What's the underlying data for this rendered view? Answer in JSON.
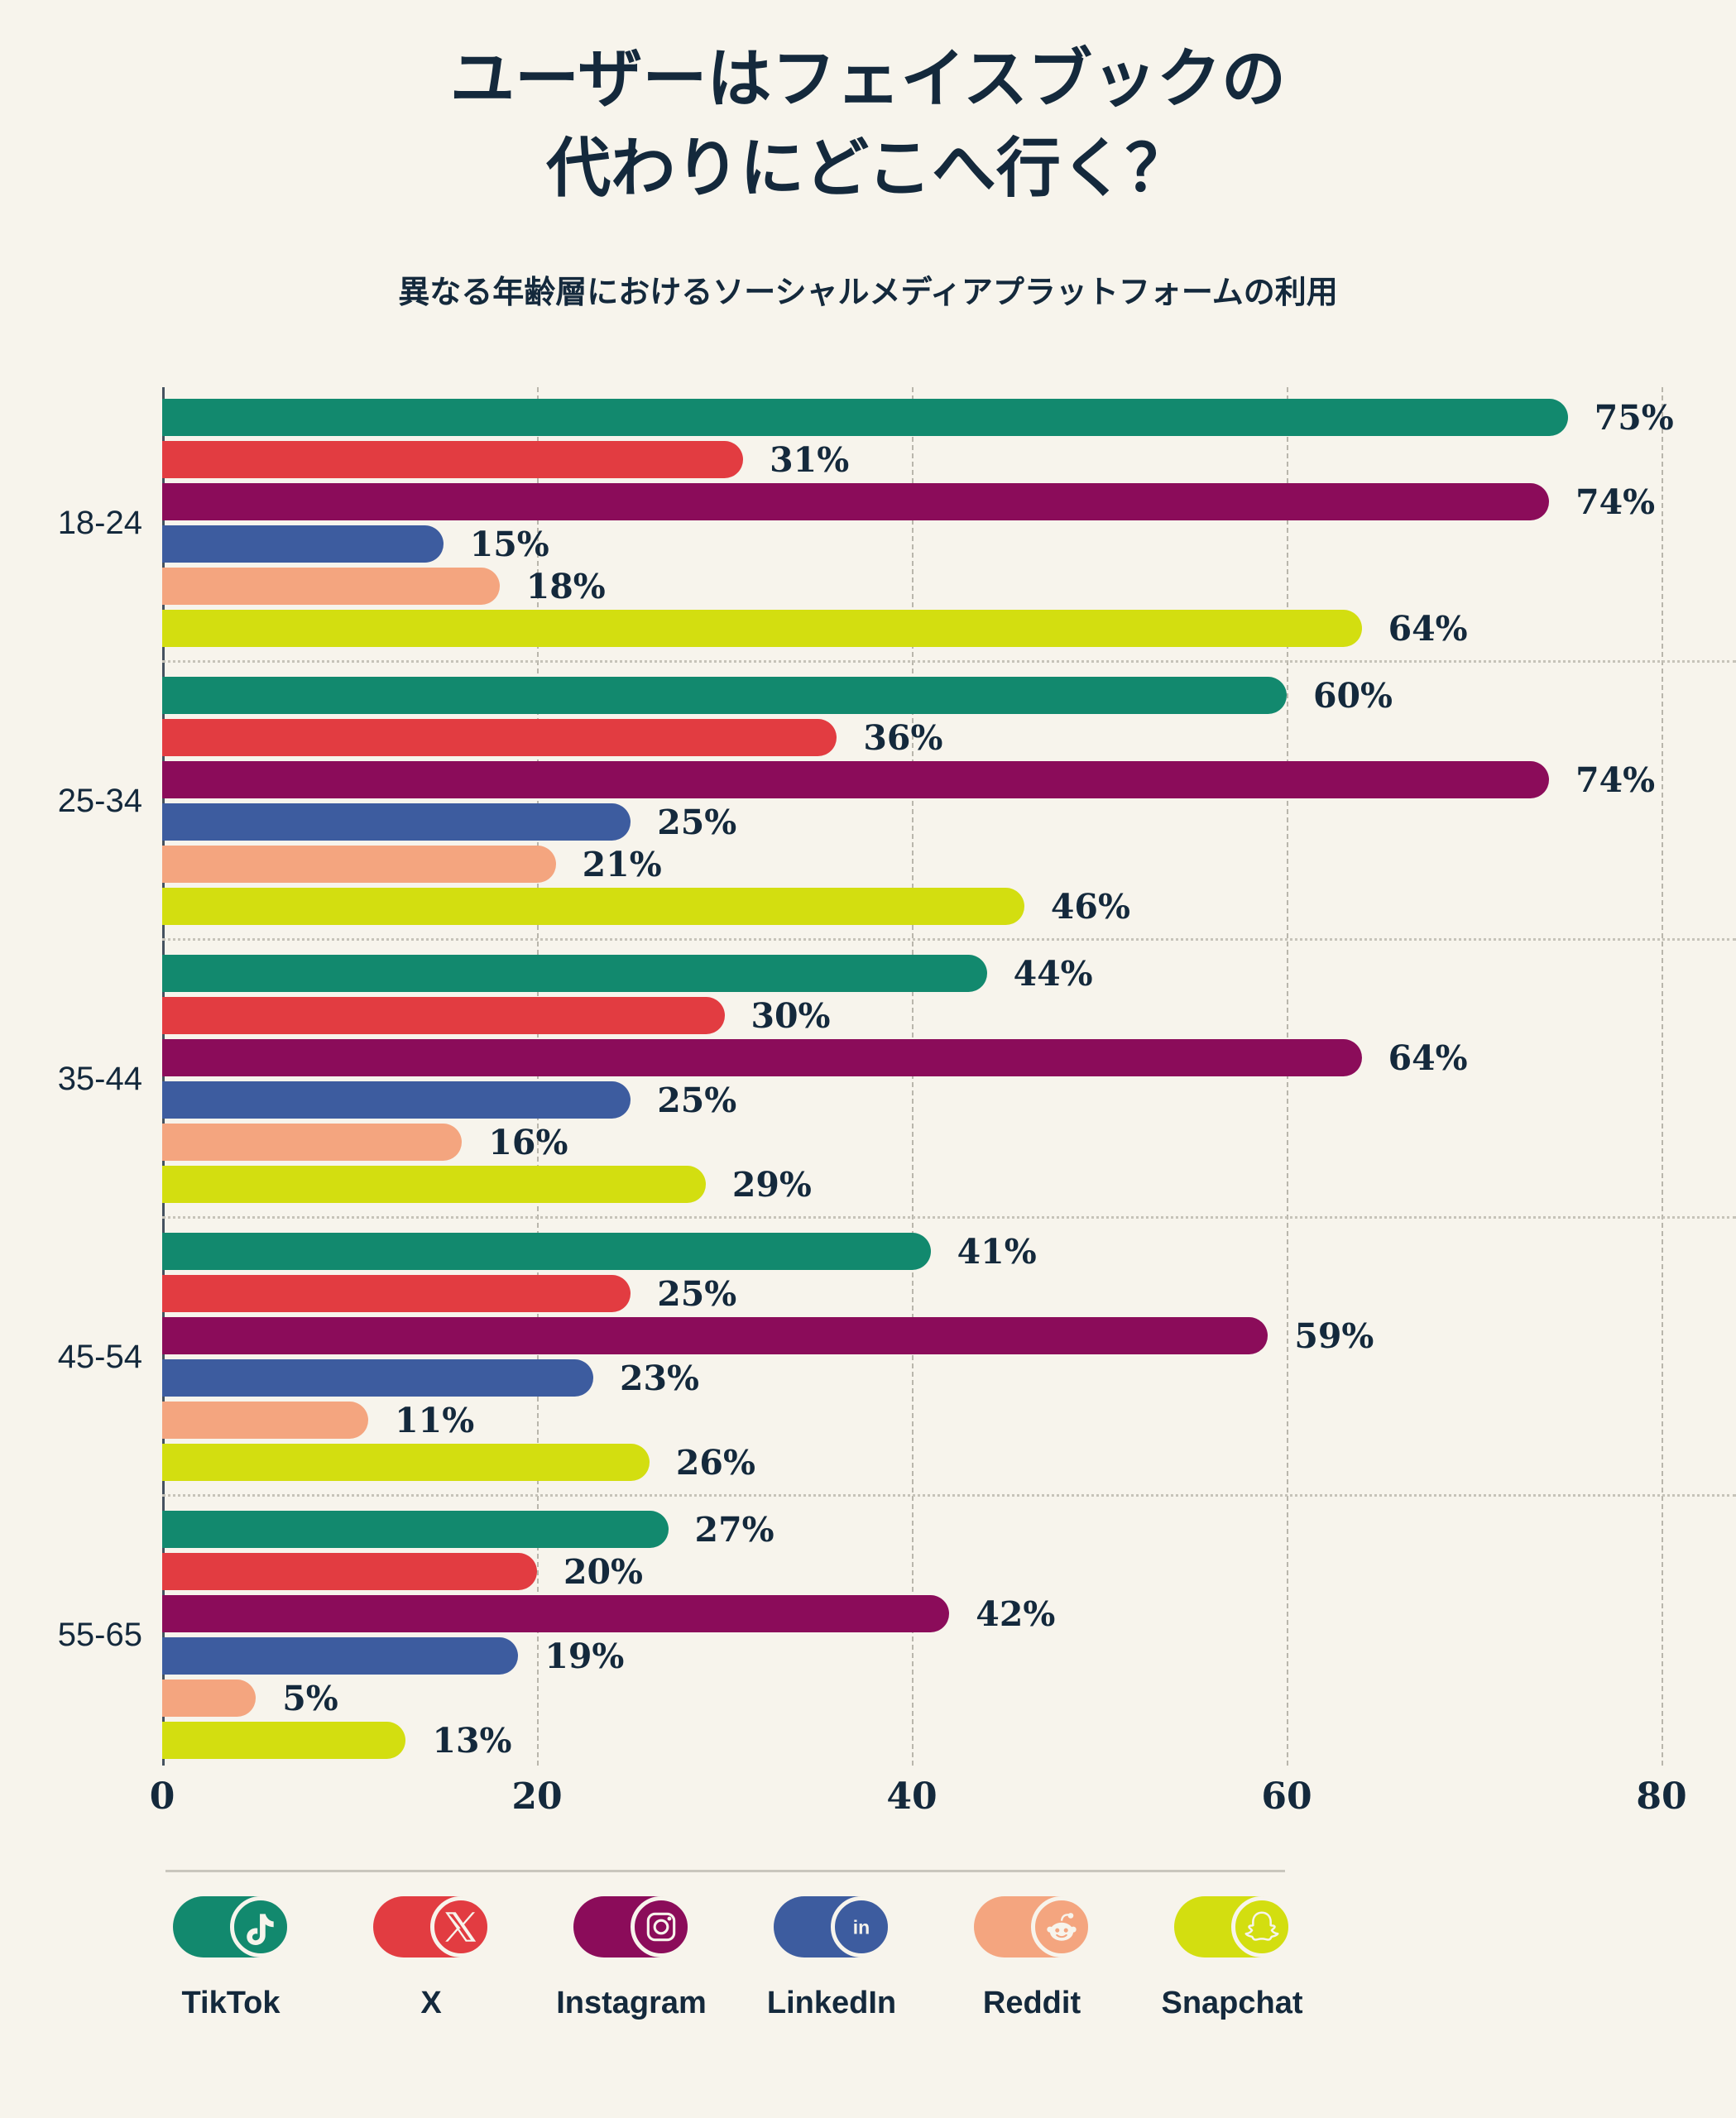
{
  "title": {
    "line1": "ユーザーはフェイスブックの",
    "line2": "代わりにどこへ行く？"
  },
  "subtitle": "異なる年齢層におけるソーシャルメディアプラットフォームの利用",
  "colors": {
    "background": "#f7f4ec",
    "text": "#14293c",
    "gridline": "#b9b6ac",
    "axis": "#45525f",
    "separator": "#c6c3b9"
  },
  "chart_data": {
    "type": "bar",
    "orientation": "horizontal",
    "title": "ユーザーはフェイスブックの代わりにどこへ行く？",
    "subtitle": "異なる年齢層におけるソーシャルメディアプラットフォームの利用",
    "categories": [
      "18-24",
      "25-34",
      "35-44",
      "45-54",
      "55-65"
    ],
    "series": [
      {
        "name": "TikTok",
        "icon": "tiktok-icon",
        "color": "#12896e",
        "values": [
          75,
          60,
          44,
          41,
          27
        ]
      },
      {
        "name": "X",
        "icon": "x-icon",
        "color": "#e23c41",
        "values": [
          31,
          36,
          30,
          25,
          20
        ]
      },
      {
        "name": "Instagram",
        "icon": "instagram-icon",
        "color": "#8b0c5a",
        "values": [
          74,
          74,
          64,
          59,
          42
        ]
      },
      {
        "name": "LinkedIn",
        "icon": "linkedin-icon",
        "color": "#3d5c9f",
        "values": [
          15,
          25,
          25,
          23,
          19
        ]
      },
      {
        "name": "Reddit",
        "icon": "reddit-icon",
        "color": "#f4a57f",
        "values": [
          18,
          21,
          16,
          11,
          5
        ]
      },
      {
        "name": "Snapchat",
        "icon": "snapchat-icon",
        "color": "#d3de10",
        "values": [
          64,
          46,
          29,
          26,
          13
        ]
      }
    ],
    "value_suffix": "%",
    "x_ticks": [
      0,
      20,
      40,
      60,
      80
    ],
    "xlim": [
      0,
      80
    ],
    "grid": "vertical-dashed",
    "legend_position": "bottom"
  }
}
